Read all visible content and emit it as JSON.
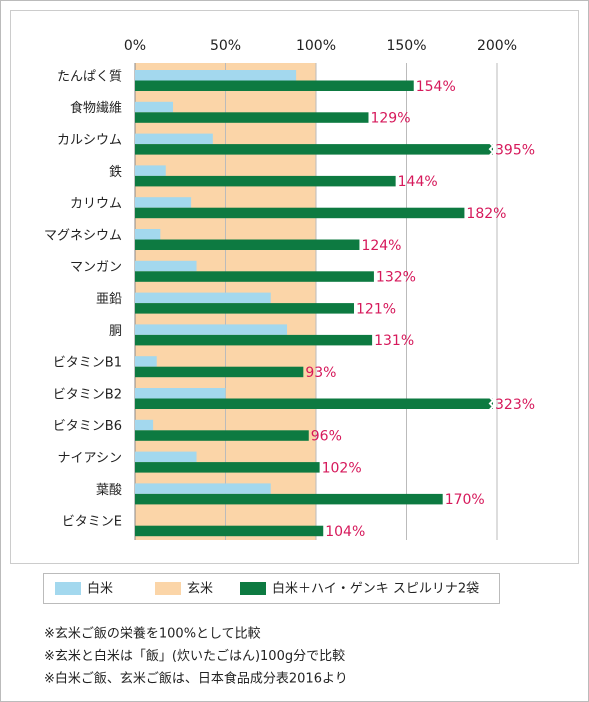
{
  "chart_data": {
    "type": "bar",
    "orientation": "horizontal",
    "categories": [
      "たんぱく質",
      "食物繊維",
      "カルシウム",
      "鉄",
      "カリウム",
      "マグネシウム",
      "マンガン",
      "亜鉛",
      "胴",
      "ビタミンB1",
      "ビタミンB2",
      "ビタミンB6",
      "ナイアシン",
      "葉酸",
      "ビタミンE"
    ],
    "reference_band": {
      "name": "玄米",
      "color": "#fbd5a8",
      "value": 100
    },
    "series": [
      {
        "name": "白米",
        "color": "#a3d8ee",
        "values": [
          89,
          21,
          43,
          17,
          31,
          14,
          34,
          75,
          84,
          12,
          50,
          10,
          34,
          75,
          null
        ]
      },
      {
        "name": "白米＋ハイ・ゲンキ スピルリナ2袋",
        "color": "#0d7a41",
        "values": [
          154,
          129,
          395,
          144,
          182,
          124,
          132,
          121,
          131,
          93,
          323,
          96,
          102,
          170,
          104
        ],
        "value_labels": [
          "154%",
          "129%",
          "395%",
          "144%",
          "182%",
          "124%",
          "132%",
          "121%",
          "131%",
          "93%",
          "323%",
          "96%",
          "102%",
          "170%",
          "104%"
        ],
        "label_color": "#d6195b"
      }
    ],
    "xlim": [
      0,
      200
    ],
    "xticks": [
      {
        "value": 0,
        "label": "0%"
      },
      {
        "value": 50,
        "label": "50%"
      },
      {
        "value": 100,
        "label": "100%"
      },
      {
        "value": 150,
        "label": "150%"
      },
      {
        "value": 200,
        "label": "200%"
      }
    ],
    "grid": true,
    "notes": [
      "※玄米ご飯の栄養を100%として比較",
      "※玄米と白米は「飯」(炊いたごはん)100g分で比較",
      "※白米ご飯、玄米ご飯は、日本食品成分表2016より"
    ]
  }
}
